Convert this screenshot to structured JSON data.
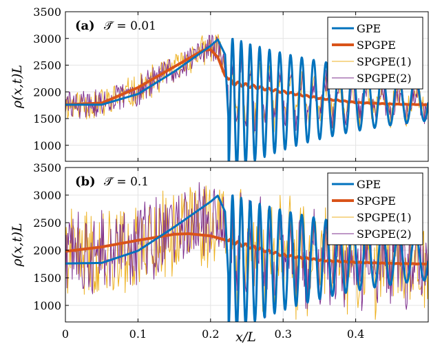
{
  "chart_data": [
    {
      "type": "line",
      "panel_label": "(a)",
      "annotation": "𝒯̄ = 0.01",
      "xlim": [
        0,
        0.5
      ],
      "ylim": [
        700,
        3500
      ],
      "yticks": [
        1000,
        1500,
        2000,
        2500,
        3000,
        3500
      ],
      "ylabel": "ρ(x,t)L",
      "grid": true,
      "legend_position": "top-right",
      "series": [
        {
          "name": "GPE",
          "color": "#0072BD",
          "kind": "gpe",
          "values_note": "",
          "x": [
            0,
            0.05,
            0.1,
            0.15,
            0.2,
            0.21,
            0.22,
            0.225,
            0.23,
            0.5
          ],
          "y": [
            1760,
            1760,
            1960,
            2380,
            2860,
            2980,
            2700,
            1400,
            880,
            1750
          ]
        },
        {
          "name": "SPGPE",
          "color": "#D95319",
          "kind": "spgpe",
          "x": [
            0,
            0.05,
            0.1,
            0.15,
            0.19,
            0.2,
            0.21,
            0.22,
            0.23,
            0.25,
            0.3,
            0.35,
            0.4,
            0.45,
            0.5
          ],
          "y": [
            1760,
            1790,
            2080,
            2470,
            2780,
            2790,
            2650,
            2300,
            2170,
            2120,
            2000,
            1880,
            1800,
            1770,
            1760
          ]
        },
        {
          "name": "SPGPE(1)",
          "color": "#EDB120",
          "kind": "noisy",
          "noise": 330,
          "seed": 11
        },
        {
          "name": "SPGPE(2)",
          "color": "#7E2F8E",
          "kind": "noisy",
          "noise": 300,
          "seed": 29
        }
      ]
    },
    {
      "type": "line",
      "panel_label": "(b)",
      "annotation": "𝒯̄ = 0.1",
      "xlim": [
        0,
        0.5
      ],
      "ylim": [
        700,
        3500
      ],
      "yticks": [
        1000,
        1500,
        2000,
        2500,
        3000,
        3500
      ],
      "xticks": [
        0,
        0.1,
        0.2,
        0.3,
        0.4
      ],
      "xticklabels": [
        "0",
        "0.1",
        "0.2",
        "0.3",
        "0.4"
      ],
      "xlabel": "x/L",
      "ylabel": "ρ(x,t)L",
      "grid": true,
      "legend_position": "top-right",
      "series": [
        {
          "name": "GPE",
          "color": "#0072BD",
          "kind": "gpe",
          "x": [
            0,
            0.05,
            0.1,
            0.15,
            0.2,
            0.21,
            0.22,
            0.225,
            0.23,
            0.5
          ],
          "y": [
            1760,
            1770,
            1990,
            2420,
            2880,
            2990,
            2700,
            1400,
            880,
            1750
          ]
        },
        {
          "name": "SPGPE",
          "color": "#D95319",
          "kind": "spgpe",
          "x": [
            0,
            0.05,
            0.1,
            0.15,
            0.17,
            0.2,
            0.25,
            0.3,
            0.35,
            0.4,
            0.45,
            0.5
          ],
          "y": [
            1980,
            2060,
            2180,
            2290,
            2300,
            2260,
            2080,
            1910,
            1820,
            1780,
            1760,
            1750
          ]
        },
        {
          "name": "SPGPE(1)",
          "color": "#EDB120",
          "kind": "noisy",
          "noise": 900,
          "seed": 41
        },
        {
          "name": "SPGPE(2)",
          "color": "#7E2F8E",
          "kind": "noisy",
          "noise": 800,
          "seed": 73
        }
      ]
    }
  ]
}
